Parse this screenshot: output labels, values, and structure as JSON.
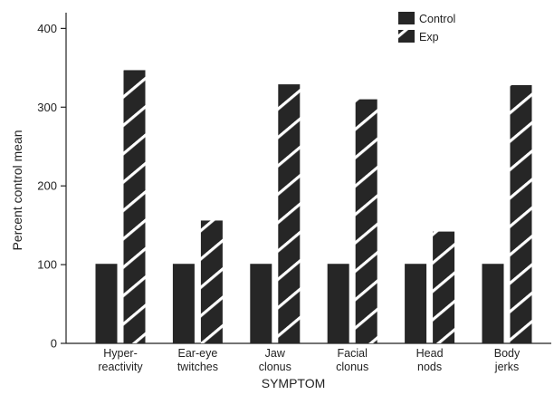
{
  "chart_data": {
    "type": "bar",
    "title": "",
    "xlabel": "SYMPTOM",
    "ylabel": "Percent control mean",
    "ylim": [
      0,
      420
    ],
    "yticks": [
      0,
      100,
      200,
      300,
      400
    ],
    "grid": false,
    "legend_position": "top-right",
    "categories": [
      [
        "Hyper-",
        "reactivity"
      ],
      [
        "Ear-eye",
        "twitches"
      ],
      [
        "Jaw",
        "clonus"
      ],
      [
        "Facial",
        "clonus"
      ],
      [
        "Head",
        "nods"
      ],
      [
        "Body",
        "jerks"
      ]
    ],
    "series": [
      {
        "name": "Control",
        "pattern": "solid",
        "color": "#262626",
        "values": [
          101,
          101,
          101,
          101,
          101,
          101
        ]
      },
      {
        "name": "Exp",
        "pattern": "hatched",
        "color": "#262626",
        "values": [
          347,
          156,
          329,
          310,
          142,
          328
        ]
      }
    ]
  }
}
